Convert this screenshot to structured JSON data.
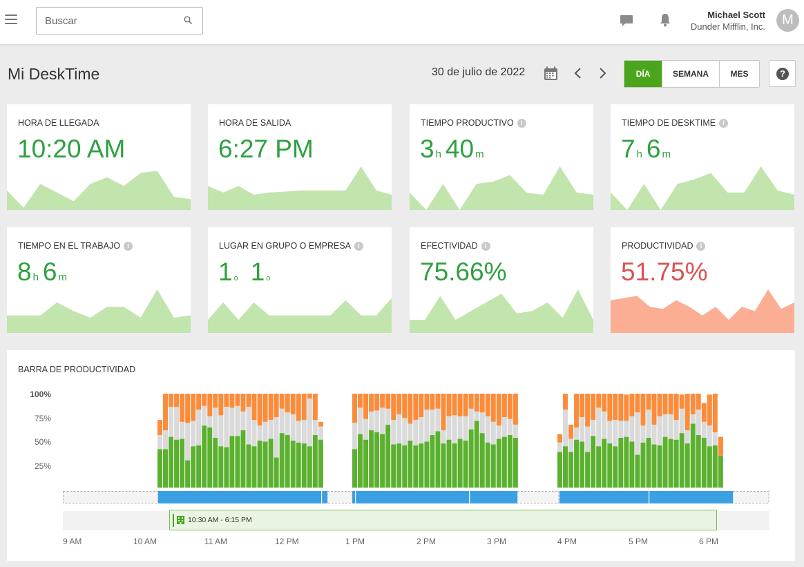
{
  "header": {
    "search_placeholder": "Buscar",
    "user_name": "Michael Scott",
    "company": "Dunder Mifflin, Inc.",
    "avatar_initial": "M"
  },
  "page": {
    "title": "Mi DeskTime",
    "date": "30 de julio de 2022",
    "period_tabs": [
      "DÍA",
      "SEMANA",
      "MES"
    ],
    "active_period": "DÍA",
    "help_label": "?"
  },
  "colors": {
    "accent_green": "#4aa51c",
    "value_green": "#2ea040",
    "value_red": "#d9534f",
    "spark_green": "#c2e4ad",
    "spark_salmon": "#fbae94",
    "bar_productive": "#5bb12f",
    "bar_neutral": "#dadada",
    "bar_unproductive": "#fb8c3c",
    "timeline_blue": "#3b9fe3"
  },
  "stats": {
    "arrival": {
      "label": "HORA DE LLEGADA",
      "value": "10:20 AM",
      "spark": [
        0.45,
        0.05,
        0.6,
        0.4,
        0.2,
        0.6,
        0.75,
        0.55,
        0.85,
        0.9,
        0.3,
        0.25
      ]
    },
    "departure": {
      "label": "HORA DE SALIDA",
      "value": "6:27 PM",
      "spark": [
        0.55,
        0.4,
        0.55,
        0.35,
        0.4,
        0.42,
        0.45,
        0.45,
        0.45,
        0.45,
        1.0,
        0.45,
        0.35
      ]
    },
    "productive": {
      "label": "TIEMPO PRODUCTIVO",
      "h": "3",
      "h_unit": "h",
      "m": "40",
      "m_unit": "m",
      "spark": [
        0.4,
        0.0,
        0.6,
        0.0,
        0.6,
        0.65,
        0.8,
        0.4,
        0.35,
        1.0,
        0.4,
        0.35
      ]
    },
    "desktime": {
      "label": "TIEMPO DE DESKTIME",
      "h": "7",
      "h_unit": "h",
      "m": "6",
      "m_unit": "m",
      "spark": [
        0.4,
        0.0,
        0.6,
        0.0,
        0.6,
        0.7,
        0.85,
        0.4,
        0.4,
        1.0,
        0.45,
        0.35
      ]
    },
    "at_work": {
      "label": "TIEMPO EN EL TRABAJO",
      "h": "8",
      "h_unit": "h",
      "m": "6",
      "m_unit": "m",
      "spark": [
        0.4,
        0.4,
        0.4,
        0.7,
        0.5,
        0.35,
        0.6,
        0.6,
        0.35,
        1.0,
        0.35,
        0.4
      ]
    },
    "rank": {
      "label": "LUGAR EN GRUPO O EMPRESA",
      "group": "1",
      "group_unit": "o",
      "company": "1",
      "company_unit": "o",
      "spark": [
        0.3,
        0.7,
        0.3,
        0.7,
        0.4,
        0.4,
        0.4,
        0.4,
        0.4,
        0.75,
        0.4,
        0.4,
        0.8
      ]
    },
    "effectiveness": {
      "label": "EFECTIVIDAD",
      "value": "75.66%",
      "spark": [
        0.3,
        0.3,
        0.85,
        0.3,
        0.5,
        0.7,
        0.9,
        0.45,
        0.5,
        0.7,
        0.35,
        1.0,
        0.3
      ]
    },
    "productivity": {
      "label": "PRODUCTIVIDAD",
      "value": "51.75%",
      "spark": [
        0.75,
        0.8,
        0.85,
        0.6,
        0.55,
        0.75,
        0.6,
        0.4,
        0.6,
        0.3,
        0.6,
        0.5,
        1.0,
        0.55,
        0.7
      ]
    }
  },
  "productivity_bar": {
    "title": "BARRA DE PRODUCTIVIDAD",
    "y_labels": [
      "100%",
      "75%",
      "50%",
      "25%"
    ],
    "hours": [
      "9 AM",
      "10 AM",
      "11 AM",
      "12 PM",
      "1 PM",
      "2 PM",
      "3 PM",
      "4 PM",
      "5 PM",
      "6 PM"
    ],
    "booking_text": "10:30 AM - 6:15 PM",
    "chart_data": {
      "type": "bar",
      "stacking": "stacked",
      "y_range_percent": [
        0,
        100
      ],
      "series_order": [
        "productive",
        "neutral",
        "unproductive"
      ],
      "segments": [
        {
          "start": "10:20 AM",
          "productive": [
            41,
            41,
            54,
            51,
            52,
            29,
            44,
            45,
            66,
            64,
            53,
            44,
            43,
            55,
            55,
            61,
            46,
            44,
            50,
            49,
            52,
            32,
            58,
            56,
            50,
            48,
            47,
            44,
            56,
            51
          ],
          "neutral": [
            15,
            20,
            32,
            35,
            18,
            40,
            27,
            38,
            21,
            12,
            32,
            33,
            43,
            30,
            32,
            20,
            40,
            28,
            16,
            21,
            20,
            43,
            26,
            24,
            28,
            23,
            25,
            51,
            16,
            14
          ],
          "unproductive": [
            16,
            39,
            14,
            14,
            30,
            31,
            29,
            17,
            13,
            24,
            15,
            23,
            14,
            15,
            13,
            19,
            14,
            28,
            34,
            30,
            28,
            25,
            16,
            20,
            22,
            29,
            28,
            5,
            28,
            5
          ]
        },
        {
          "start": "1:00 PM",
          "productive": [
            41,
            57,
            51,
            61,
            59,
            57,
            67,
            46,
            47,
            45,
            50,
            45,
            47,
            49,
            56,
            60,
            47,
            51,
            47,
            52,
            50,
            62,
            71,
            58,
            48,
            46,
            52,
            54,
            56,
            53
          ],
          "neutral": [
            28,
            28,
            22,
            20,
            23,
            28,
            17,
            26,
            31,
            29,
            18,
            27,
            28,
            34,
            27,
            24,
            14,
            25,
            30,
            24,
            26,
            22,
            10,
            22,
            28,
            24,
            14,
            21,
            17,
            14
          ],
          "unproductive": [
            31,
            15,
            27,
            19,
            18,
            15,
            16,
            28,
            22,
            26,
            32,
            28,
            25,
            17,
            17,
            16,
            39,
            24,
            23,
            24,
            24,
            16,
            19,
            20,
            24,
            30,
            34,
            25,
            27,
            33
          ]
        },
        {
          "start": "3:50 PM",
          "productive": [
            38,
            44,
            38,
            51,
            49,
            38,
            55,
            44,
            52,
            47,
            44,
            53,
            54,
            49,
            35,
            48,
            53,
            46,
            45,
            54,
            52,
            51,
            58,
            47,
            68,
            56,
            53,
            44,
            45,
            34
          ],
          "neutral": [
            10,
            39,
            14,
            13,
            26,
            27,
            17,
            41,
            29,
            24,
            28,
            18,
            17,
            27,
            45,
            18,
            30,
            21,
            31,
            24,
            26,
            21,
            26,
            14,
            10,
            27,
            17,
            22,
            14,
            0
          ],
          "unproductive": [
            9,
            17,
            15,
            36,
            25,
            35,
            28,
            15,
            19,
            29,
            28,
            29,
            28,
            24,
            20,
            34,
            17,
            33,
            24,
            22,
            22,
            28,
            15,
            39,
            22,
            17,
            20,
            33,
            41,
            20
          ]
        }
      ]
    }
  }
}
